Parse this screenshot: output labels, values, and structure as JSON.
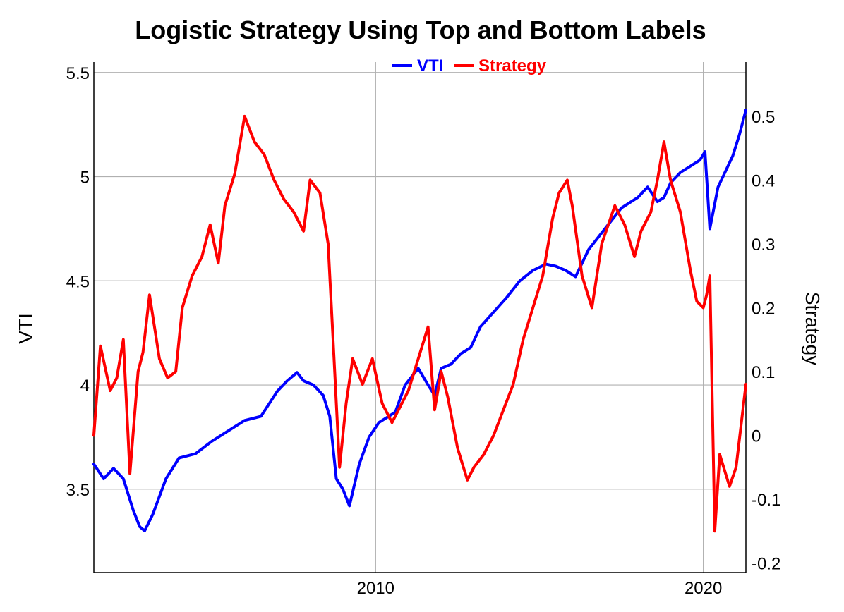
{
  "chart_data": {
    "type": "line",
    "title": "Logistic Strategy Using Top and Bottom Labels",
    "xlabel": "",
    "ylabel_left": "VTI",
    "ylabel_right": "Strategy",
    "xlim": [
      2001.4,
      2021.3
    ],
    "ylim_left": [
      3.1,
      5.55
    ],
    "ylim_right": [
      -0.215,
      0.585
    ],
    "x_ticks": [
      2010,
      2020
    ],
    "y_ticks_left": [
      3.5,
      4,
      4.5,
      5,
      5.5
    ],
    "y_ticks_right": [
      -0.2,
      -0.1,
      0,
      0.1,
      0.2,
      0.3,
      0.4,
      0.5
    ],
    "grid": true,
    "legend_position": "top-center",
    "series": [
      {
        "name": "VTI",
        "axis": "left",
        "color": "#0000ff",
        "x": [
          2001.4,
          2001.7,
          2002.0,
          2002.3,
          2002.6,
          2002.8,
          2002.95,
          2003.2,
          2003.6,
          2004.0,
          2004.5,
          2005.0,
          2005.5,
          2006.0,
          2006.5,
          2007.0,
          2007.3,
          2007.6,
          2007.8,
          2008.1,
          2008.4,
          2008.6,
          2008.8,
          2009.0,
          2009.2,
          2009.5,
          2009.8,
          2010.1,
          2010.4,
          2010.6,
          2010.9,
          2011.3,
          2011.6,
          2011.8,
          2012.0,
          2012.3,
          2012.6,
          2012.9,
          2013.2,
          2013.6,
          2014.0,
          2014.4,
          2014.8,
          2015.2,
          2015.5,
          2015.8,
          2016.1,
          2016.5,
          2017.0,
          2017.5,
          2018.0,
          2018.3,
          2018.6,
          2018.8,
          2019.0,
          2019.3,
          2019.6,
          2019.9,
          2020.05,
          2020.2,
          2020.45,
          2020.6,
          2020.9,
          2021.1,
          2021.3
        ],
        "values": [
          3.62,
          3.55,
          3.6,
          3.55,
          3.4,
          3.32,
          3.3,
          3.38,
          3.55,
          3.65,
          3.67,
          3.73,
          3.78,
          3.83,
          3.85,
          3.97,
          4.02,
          4.06,
          4.02,
          4.0,
          3.95,
          3.85,
          3.55,
          3.5,
          3.42,
          3.62,
          3.75,
          3.82,
          3.85,
          3.87,
          4.0,
          4.08,
          4.0,
          3.95,
          4.08,
          4.1,
          4.15,
          4.18,
          4.28,
          4.35,
          4.42,
          4.5,
          4.55,
          4.58,
          4.57,
          4.55,
          4.52,
          4.65,
          4.75,
          4.85,
          4.9,
          4.95,
          4.88,
          4.9,
          4.97,
          5.02,
          5.05,
          5.08,
          5.12,
          4.75,
          4.95,
          5.0,
          5.1,
          5.2,
          5.32
        ]
      },
      {
        "name": "Strategy",
        "axis": "right",
        "color": "#ff0000",
        "x": [
          2001.4,
          2001.6,
          2001.9,
          2002.1,
          2002.3,
          2002.5,
          2002.75,
          2002.9,
          2003.1,
          2003.4,
          2003.65,
          2003.9,
          2004.1,
          2004.4,
          2004.7,
          2004.95,
          2005.2,
          2005.4,
          2005.7,
          2006.0,
          2006.3,
          2006.6,
          2006.9,
          2007.2,
          2007.5,
          2007.8,
          2008.0,
          2008.3,
          2008.55,
          2008.75,
          2008.9,
          2009.1,
          2009.3,
          2009.6,
          2009.9,
          2010.2,
          2010.5,
          2010.7,
          2011.0,
          2011.3,
          2011.6,
          2011.8,
          2012.0,
          2012.2,
          2012.5,
          2012.8,
          2013.0,
          2013.3,
          2013.6,
          2013.9,
          2014.2,
          2014.5,
          2014.8,
          2015.1,
          2015.4,
          2015.6,
          2015.85,
          2016.0,
          2016.3,
          2016.6,
          2016.9,
          2017.3,
          2017.6,
          2017.9,
          2018.1,
          2018.4,
          2018.6,
          2018.8,
          2019.0,
          2019.3,
          2019.6,
          2019.8,
          2020.0,
          2020.1,
          2020.2,
          2020.35,
          2020.5,
          2020.8,
          2021.0,
          2021.3
        ],
        "values": [
          0.0,
          0.14,
          0.07,
          0.09,
          0.15,
          -0.06,
          0.1,
          0.13,
          0.22,
          0.12,
          0.09,
          0.1,
          0.2,
          0.25,
          0.28,
          0.33,
          0.27,
          0.36,
          0.41,
          0.5,
          0.46,
          0.44,
          0.4,
          0.37,
          0.35,
          0.32,
          0.4,
          0.38,
          0.3,
          0.1,
          -0.05,
          0.05,
          0.12,
          0.08,
          0.12,
          0.05,
          0.02,
          0.04,
          0.07,
          0.12,
          0.17,
          0.04,
          0.1,
          0.06,
          -0.02,
          -0.07,
          -0.05,
          -0.03,
          0.0,
          0.04,
          0.08,
          0.15,
          0.2,
          0.25,
          0.34,
          0.38,
          0.4,
          0.36,
          0.25,
          0.2,
          0.3,
          0.36,
          0.33,
          0.28,
          0.32,
          0.35,
          0.4,
          0.46,
          0.4,
          0.35,
          0.26,
          0.21,
          0.2,
          0.22,
          0.25,
          -0.15,
          -0.03,
          -0.08,
          -0.05,
          0.08
        ]
      }
    ]
  }
}
